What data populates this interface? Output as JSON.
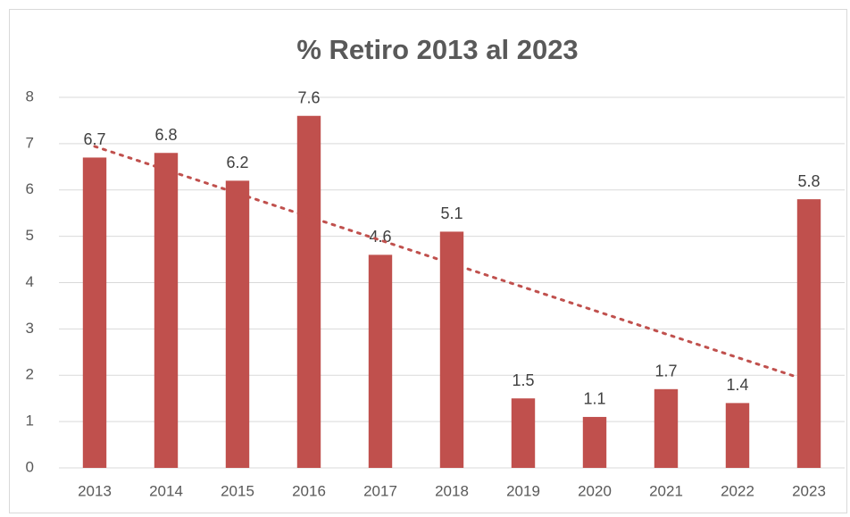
{
  "chart_data": {
    "type": "bar",
    "title": "% Retiro 2013 al 2023",
    "categories": [
      "2013",
      "2014",
      "2015",
      "2016",
      "2017",
      "2018",
      "2019",
      "2020",
      "2021",
      "2022",
      "2023"
    ],
    "values": [
      6.7,
      6.8,
      6.2,
      7.6,
      4.6,
      5.1,
      1.5,
      1.1,
      1.7,
      1.4,
      5.8
    ],
    "color": "#c0504d",
    "ylim": [
      0,
      8
    ],
    "yticks": [
      0,
      1,
      2,
      3,
      4,
      5,
      6,
      7,
      8
    ],
    "grid": true,
    "trendline": {
      "type": "linear",
      "color": "#c0504d"
    }
  }
}
